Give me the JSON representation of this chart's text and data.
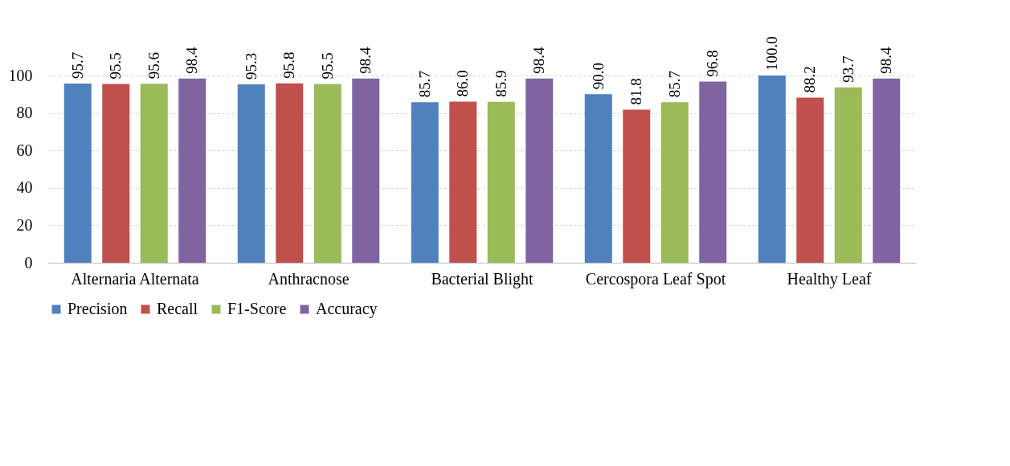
{
  "chart_data": {
    "type": "bar",
    "categories": [
      "Alternaria Alternata",
      "Anthracnose",
      "Bacterial Blight",
      "Cercospora Leaf Spot",
      "Healthy Leaf"
    ],
    "series": [
      {
        "name": "Precision",
        "color": "#4f81bd",
        "values": [
          95.7,
          95.3,
          85.7,
          90.0,
          100.0
        ]
      },
      {
        "name": "Recall",
        "color": "#c0504d",
        "values": [
          95.5,
          95.8,
          86.0,
          81.8,
          88.2
        ]
      },
      {
        "name": "F1-Score",
        "color": "#9bbb59",
        "values": [
          95.6,
          95.5,
          85.9,
          85.7,
          93.7
        ]
      },
      {
        "name": "Accuracy",
        "color": "#8064a2",
        "values": [
          98.4,
          98.4,
          98.4,
          96.8,
          98.4
        ]
      }
    ],
    "value_labels": [
      [
        "95.7",
        "95.3",
        "85.7",
        "90.0",
        "100.0"
      ],
      [
        "95.5",
        "95.8",
        "86.0",
        "81.8",
        "88.2"
      ],
      [
        "95.6",
        "95.5",
        "85.9",
        "85.7",
        "93.7"
      ],
      [
        "98.4",
        "98.4",
        "98.4",
        "96.8",
        "98.4"
      ]
    ],
    "ylim": [
      0,
      100
    ],
    "yticks": [
      0,
      20,
      40,
      60,
      80,
      100
    ],
    "grid": "y",
    "legend": "bottom"
  }
}
